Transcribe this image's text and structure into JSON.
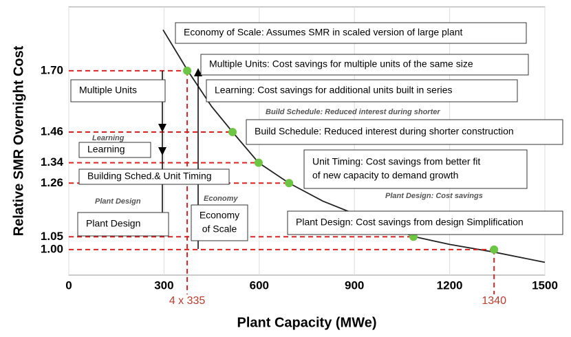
{
  "chart_data": {
    "type": "line",
    "x_label": "Plant Capacity (MWe)",
    "y_label": "Relative SMR Overnight Cost",
    "xlim": [
      0,
      1500
    ],
    "ylim": [
      0.9,
      1.95
    ],
    "xticks": [
      0,
      300,
      600,
      900,
      1200,
      1500
    ],
    "yticks": [
      {
        "value": 1.0,
        "label": "1.00"
      },
      {
        "value": 1.05,
        "label": "1.05"
      },
      {
        "value": 1.26,
        "label": "1.26"
      },
      {
        "value": 1.34,
        "label": "1.34"
      },
      {
        "value": 1.46,
        "label": "1.46"
      },
      {
        "value": 1.7,
        "label": "1.70"
      }
    ],
    "grid": true,
    "series": [
      {
        "x": [
          297,
          375,
          450,
          516,
          598,
          694,
          800,
          900,
          1000,
          1090,
          1200,
          1340,
          1420,
          1500
        ],
        "values": [
          1.86,
          1.7,
          1.56,
          1.46,
          1.34,
          1.26,
          1.19,
          1.14,
          1.09,
          1.05,
          1.02,
          0.99,
          0.97,
          0.95
        ],
        "color": "#222222"
      }
    ],
    "points": {
      "x": [
        373,
        516,
        598,
        694,
        1086,
        1340
      ],
      "values": [
        1.7,
        1.46,
        1.34,
        1.26,
        1.05,
        1.0
      ],
      "color": "#6cc644"
    },
    "x_markers": [
      {
        "x": 373,
        "label": "4 x 335"
      },
      {
        "x": 1340,
        "label": "1340"
      }
    ],
    "annotations": [
      {
        "lines": [
          "Economy of Scale: Assumes SMR in scaled version of large plant"
        ]
      },
      {
        "lines": [
          "Multiple Units: Cost savings for multiple units of the same size"
        ]
      },
      {
        "lines": [
          "Learning: Cost savings for additional units built in series"
        ]
      },
      {
        "lines": [
          "Build Schedule: Reduced interest during shorter construction"
        ]
      },
      {
        "lines": [
          "Unit Timing: Cost savings from better fit",
          "of new capacity to demand growth"
        ]
      },
      {
        "lines": [
          "Plant Design: Cost savings from design Simplification"
        ]
      },
      {
        "lines": [
          "Multiple Units"
        ]
      },
      {
        "lines": [
          "Learning"
        ]
      },
      {
        "lines": [
          "Building Sched.& Unit Timing"
        ]
      },
      {
        "lines": [
          "Plant Design"
        ]
      },
      {
        "lines": [
          "Economy",
          "of Scale"
        ]
      }
    ],
    "faint_labels": [
      "Build Schedule: Reduced interest during shorter",
      "Plant Design: Cost savings",
      "Economy",
      "Plant Design",
      "Learning"
    ]
  }
}
